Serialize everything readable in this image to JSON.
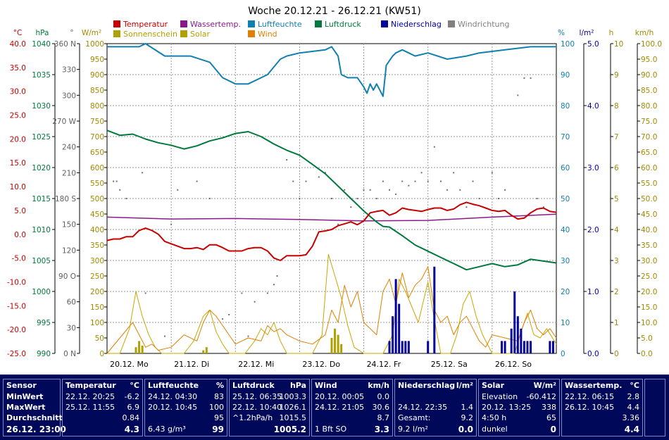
{
  "chart_data": {
    "type": "line",
    "title": "Woche 20.12.21 - 26.12.21 (KW51)",
    "x_range": [
      "20.12.21 00:00",
      "27.12.21 00:00"
    ],
    "x_ticks": [
      "20.12. Mo",
      "21.12. Di",
      "22.12. Mi",
      "23.12. Do",
      "24.12. Fr",
      "25.12. Sa",
      "26.12. So"
    ],
    "axes": {
      "temp": {
        "unit": "°C",
        "range": [
          -25,
          40
        ],
        "ticks": [
          "40.0",
          "35.0",
          "30.0",
          "25.0",
          "20.0",
          "15.0",
          "10.0",
          "5.0",
          "0.0",
          "-5.0",
          "-10.0",
          "-15.0",
          "-20.0",
          "-25.0"
        ],
        "color": "#c80000"
      },
      "pressure": {
        "unit": "hPa",
        "range": [
          990,
          1040
        ],
        "ticks": [
          "1040",
          "1035",
          "1030",
          "1025",
          "1020",
          "1015",
          "1010",
          "1005",
          "1000",
          "995",
          "990"
        ],
        "color": "#007a3c"
      },
      "wind_dir": {
        "unit": "°",
        "range": [
          0,
          360
        ],
        "ticks": [
          "360 N",
          "330",
          "300",
          "270 W",
          "240",
          "210",
          "180 S",
          "150",
          "120",
          "90 O",
          "60",
          "30",
          "0 N"
        ],
        "color": "#606060"
      },
      "solar": {
        "unit": "W/m²",
        "range": [
          0,
          1000
        ],
        "ticks": [
          "1000",
          "950",
          "900",
          "850",
          "800",
          "750",
          "700",
          "650",
          "600",
          "550",
          "500",
          "450",
          "400",
          "350",
          "300",
          "250",
          "200",
          "150",
          "100",
          "50",
          "0"
        ],
        "color": "#a08a00"
      },
      "humidity": {
        "unit": "%",
        "range": [
          0,
          100
        ],
        "ticks": [
          "100",
          "90",
          "80",
          "70",
          "60",
          "50",
          "40",
          "30",
          "20",
          "10",
          "0"
        ],
        "color": "#1080b0"
      },
      "precip": {
        "unit": "l/m²",
        "range": [
          0,
          5
        ],
        "ticks": [
          "5.0",
          "4.0",
          "3.0",
          "2.0",
          "1.0",
          "0.0"
        ],
        "color": "#0000a0"
      },
      "sunshine": {
        "unit": "h",
        "range": [
          0,
          10
        ],
        "ticks": [
          "10",
          "9",
          "8",
          "7",
          "6",
          "5",
          "4",
          "3",
          "2",
          "1",
          "0"
        ],
        "color": "#a08a00"
      },
      "wind": {
        "unit": "km/h",
        "range": [
          0,
          100
        ],
        "ticks": [
          "100.0",
          "95.0",
          "90.0",
          "85.0",
          "80.0",
          "75.0",
          "70.0",
          "65.0",
          "60.0",
          "55.0",
          "50.0",
          "45.0",
          "40.0",
          "35.0",
          "30.0",
          "25.0",
          "20.0",
          "15.0",
          "10.0",
          "5.0",
          "0.0"
        ],
        "color": "#a08a00"
      }
    },
    "legend": [
      {
        "name": "Temperatur",
        "color": "#c80000"
      },
      {
        "name": "Wassertemp.",
        "color": "#8a1a8a"
      },
      {
        "name": "Luftfeuchte",
        "color": "#1080b0"
      },
      {
        "name": "Luftdruck",
        "color": "#007a3c"
      },
      {
        "name": "Niederschlag",
        "color": "#0000a0"
      },
      {
        "name": "Windrichtung",
        "color": "#808080"
      },
      {
        "name": "Sonnenschein",
        "color": "#b0a000"
      },
      {
        "name": "Solar",
        "color": "#b0a000"
      },
      {
        "name": "Wind",
        "color": "#e08000"
      }
    ],
    "series": {
      "temperature": {
        "axis": "temp",
        "x": [
          0,
          0.1,
          0.2,
          0.3,
          0.4,
          0.5,
          0.6,
          0.7,
          0.8,
          0.9,
          1.0,
          1.1,
          1.2,
          1.3,
          1.4,
          1.5,
          1.6,
          1.7,
          1.8,
          1.9,
          2.0,
          2.1,
          2.2,
          2.3,
          2.4,
          2.5,
          2.6,
          2.7,
          2.8,
          2.9,
          3.0,
          3.1,
          3.2,
          3.3,
          3.4,
          3.5,
          3.6,
          3.7,
          3.8,
          3.9,
          4.0,
          4.1,
          4.2,
          4.3,
          4.4,
          4.5,
          4.6,
          4.7,
          4.8,
          4.9,
          5.0,
          5.1,
          5.2,
          5.3,
          5.4,
          5.5,
          5.6,
          5.7,
          5.8,
          5.9,
          6.0,
          6.1,
          6.2,
          6.3,
          6.4,
          6.5,
          6.6,
          6.7,
          6.8,
          6.9,
          7.0
        ],
        "y": [
          -1.3,
          -1.0,
          -1.0,
          -0.5,
          -0.5,
          0.8,
          1.3,
          0.8,
          0.0,
          -1.5,
          -2.0,
          -2.5,
          -3.0,
          -3.0,
          -2.8,
          -3.2,
          -2.2,
          -2.2,
          -2.8,
          -3.5,
          -3.5,
          -3.5,
          -3.0,
          -2.8,
          -2.8,
          -3.5,
          -5.0,
          -5.5,
          -4.5,
          -4.5,
          -4.5,
          -4.3,
          -2.5,
          0.5,
          0.7,
          1.0,
          1.8,
          2.2,
          2.6,
          2.0,
          2.8,
          4.5,
          4.8,
          5.0,
          4.0,
          4.5,
          5.5,
          5.2,
          5.0,
          4.8,
          5.2,
          5.5,
          5.5,
          5.0,
          5.3,
          6.2,
          6.7,
          6.3,
          6.0,
          5.5,
          5.0,
          4.8,
          5.0,
          4.0,
          3.2,
          3.4,
          4.5,
          5.3,
          5.5,
          4.8,
          4.6
        ]
      },
      "water_temperature": {
        "axis": "temp",
        "x": [
          0,
          1,
          2,
          3,
          4,
          5,
          6,
          7
        ],
        "y": [
          3.6,
          3.2,
          3.3,
          3.1,
          2.8,
          2.9,
          3.6,
          4.2
        ]
      },
      "humidity": {
        "axis": "humidity",
        "x": [
          0,
          0.3,
          0.5,
          0.6,
          0.9,
          1.3,
          1.6,
          1.8,
          2.0,
          2.2,
          2.5,
          2.7,
          2.8,
          3.0,
          3.4,
          3.5,
          3.6,
          3.65,
          3.75,
          3.9,
          4.0,
          4.05,
          4.1,
          4.15,
          4.2,
          4.3,
          4.35,
          4.45,
          4.5,
          4.6,
          4.7,
          4.8,
          5.0,
          5.3,
          5.6,
          5.8,
          6.2,
          6.6,
          6.8,
          7.0
        ],
        "y": [
          99,
          99,
          99,
          100,
          96,
          96,
          94,
          89,
          87,
          87,
          90,
          95,
          96,
          97,
          98,
          99,
          96,
          90,
          89,
          89,
          86,
          84,
          87,
          85,
          87,
          83,
          93,
          96,
          97,
          98,
          97,
          96,
          97,
          95,
          96,
          97,
          98,
          99,
          99,
          99
        ]
      },
      "pressure": {
        "axis": "pressure",
        "x": [
          0,
          0.2,
          0.4,
          0.6,
          0.8,
          1.0,
          1.2,
          1.4,
          1.6,
          1.8,
          2.0,
          2.2,
          2.4,
          2.6,
          2.8,
          3.0,
          3.2,
          3.4,
          3.6,
          3.8,
          4.0,
          4.2,
          4.3,
          4.4,
          4.6,
          4.8,
          5.0,
          5.2,
          5.4,
          5.6,
          5.8,
          6.0,
          6.2,
          6.4,
          6.6,
          6.8,
          7.0
        ],
        "y": [
          1026.0,
          1025.2,
          1025.4,
          1024.6,
          1024.0,
          1023.6,
          1023.0,
          1023.5,
          1024.3,
          1024.8,
          1025.5,
          1025.8,
          1025.0,
          1023.8,
          1022.8,
          1022.0,
          1020.5,
          1019.0,
          1017.0,
          1015.0,
          1013.0,
          1011.2,
          1010.5,
          1010.4,
          1009.0,
          1007.5,
          1006.5,
          1005.5,
          1004.5,
          1003.5,
          1004.0,
          1004.5,
          1004.0,
          1004.3,
          1005.2,
          1004.9,
          1004.6
        ]
      },
      "solar": {
        "axis": "solar",
        "x": [
          0,
          0.2,
          0.35,
          0.45,
          0.55,
          0.65,
          0.75,
          0.85,
          1.0,
          1.2,
          1.35,
          1.5,
          1.6,
          1.7,
          1.8,
          1.9,
          2.0,
          2.15,
          2.3,
          2.4,
          2.5,
          2.6,
          2.7,
          2.8,
          2.9,
          3.0,
          3.2,
          3.35,
          3.45,
          3.55,
          3.65,
          3.75,
          3.85,
          4.0,
          4.1,
          4.3,
          4.45,
          4.55,
          4.65,
          4.75,
          4.85,
          5.0,
          5.1,
          5.2,
          5.35,
          5.45,
          5.55,
          5.65,
          5.75,
          5.85,
          6.0,
          6.2,
          6.35,
          6.45,
          6.55,
          6.65,
          6.75,
          6.85,
          7.0
        ],
        "y": [
          0,
          0,
          80,
          200,
          120,
          60,
          20,
          0,
          0,
          0,
          40,
          120,
          140,
          70,
          30,
          0,
          0,
          0,
          40,
          80,
          60,
          100,
          40,
          0,
          0,
          0,
          0,
          60,
          320,
          250,
          180,
          90,
          20,
          0,
          0,
          0,
          60,
          240,
          200,
          150,
          100,
          230,
          110,
          0,
          0,
          60,
          160,
          200,
          120,
          60,
          0,
          0,
          0,
          70,
          130,
          60,
          50,
          80,
          30
        ]
      },
      "wind": {
        "axis": "wind",
        "x": [
          0,
          0.2,
          0.4,
          0.5,
          0.6,
          0.7,
          0.8,
          1.0,
          1.2,
          1.4,
          1.5,
          1.6,
          1.7,
          1.8,
          1.9,
          2.0,
          2.2,
          2.4,
          2.5,
          2.6,
          2.7,
          2.8,
          3.0,
          3.2,
          3.4,
          3.5,
          3.6,
          3.7,
          3.8,
          3.9,
          4.0,
          4.2,
          4.3,
          4.4,
          4.5,
          4.6,
          4.7,
          4.8,
          4.9,
          5.0,
          5.1,
          5.2,
          5.3,
          5.4,
          5.5,
          5.6,
          5.7,
          5.8,
          5.9,
          6.0,
          6.2,
          6.4,
          6.5,
          6.6,
          6.7,
          6.8,
          6.9,
          7.0
        ],
        "y": [
          0,
          5,
          10,
          6,
          2,
          3,
          1,
          2,
          6,
          4,
          10,
          14,
          12,
          9,
          6,
          3,
          5,
          4,
          9,
          7,
          8,
          6,
          4,
          3,
          6,
          14,
          10,
          22,
          15,
          20,
          10,
          6,
          20,
          24,
          16,
          26,
          18,
          22,
          24,
          28,
          14,
          10,
          12,
          6,
          10,
          12,
          8,
          4,
          2,
          6,
          5,
          4,
          10,
          14,
          8,
          6,
          8,
          5
        ]
      },
      "wind_direction": {
        "axis": "wind_dir",
        "x": [
          0.1,
          0.15,
          0.2,
          0.3,
          0.55,
          0.6,
          0.9,
          1.0,
          1.1,
          1.4,
          1.6,
          1.8,
          1.9,
          2.1,
          2.2,
          2.3,
          2.5,
          2.6,
          2.65,
          2.8,
          2.9,
          3.0,
          3.1,
          3.3,
          3.4,
          3.5,
          3.6,
          3.7,
          3.8,
          3.9,
          4.0,
          4.1,
          4.2,
          4.3,
          4.4,
          4.5,
          4.6,
          4.7,
          4.8,
          4.9,
          5.0,
          5.1,
          5.2,
          5.3,
          5.4,
          5.5,
          5.6,
          5.7,
          5.8,
          6.0,
          6.1,
          6.2,
          6.4,
          6.5,
          6.6,
          6.7,
          6.8
        ],
        "y": [
          200,
          200,
          190,
          180,
          210,
          70,
          20,
          150,
          190,
          200,
          180,
          40,
          45,
          70,
          20,
          60,
          70,
          80,
          90,
          225,
          200,
          180,
          200,
          205,
          210,
          180,
          150,
          190,
          170,
          180,
          190,
          190,
          180,
          200,
          190,
          185,
          200,
          195,
          200,
          210,
          200,
          240,
          200,
          190,
          210,
          190,
          170,
          200,
          180,
          210,
          180,
          190,
          300,
          320,
          320,
          180,
          170
        ]
      },
      "sunshine_bars": {
        "axis": "sunshine",
        "x": [
          0.45,
          0.5,
          0.55,
          1.5,
          1.55,
          3.5,
          3.55,
          3.6,
          3.65
        ],
        "y": [
          0.2,
          0.4,
          0.25,
          0.1,
          0.2,
          0.5,
          0.8,
          0.6,
          0.3
        ]
      },
      "precipitation": {
        "axis": "precip",
        "x": [
          4.4,
          4.45,
          4.5,
          4.55,
          4.6,
          4.65,
          4.7,
          5.0,
          5.1,
          6.15,
          6.2,
          6.3,
          6.35,
          6.4,
          6.45,
          6.5,
          6.55,
          6.6,
          6.9,
          6.95
        ],
        "y": [
          0.2,
          0.6,
          1.2,
          0.8,
          0.2,
          0.2,
          0.2,
          0.2,
          1.4,
          0.2,
          0.2,
          0.4,
          1.0,
          0.6,
          0.4,
          0.2,
          0.2,
          0.2,
          0.2,
          0.2
        ]
      }
    }
  },
  "table": {
    "sensor": {
      "label": "Sensor",
      "min": "MinWert",
      "max": "MaxWert",
      "avg": "Durchschnitt",
      "time": "26.12. 23:00"
    },
    "temperatur": {
      "title": "Temperatur",
      "unit": "°C",
      "min_time": "22.12. 20:25",
      "min": "-6.2",
      "max_time": "25.12. 11:55",
      "max": "6.9",
      "avg": "0.84",
      "current": "4.3"
    },
    "luftfeuchte": {
      "title": "Luftfeuchte",
      "unit": "%",
      "min_time": "24.12. 04:30",
      "min": "83",
      "max_time": "20.12. 10:45",
      "max": "100",
      "avg": "95",
      "abs": "6.43 g/m³",
      "current": "99"
    },
    "luftdruck": {
      "title": "Luftdruck",
      "unit": "hPa",
      "min_time": "25.12. 06:35",
      "min": "1003.3",
      "max_time": "22.12. 10:40",
      "max": "1026.1",
      "trend": "^1.2hPa/h",
      "avg": "1015.5",
      "current": "1005.2"
    },
    "wind": {
      "title": "Wind",
      "unit": "km/h",
      "min_time": "20.12. 00:05",
      "min": "0.0",
      "max_time": "24.12. 21:05",
      "max": "30.6",
      "avg": "8.7",
      "beaufort": "1 Bft SO",
      "current": "3.3"
    },
    "niederschlag": {
      "title": "Niederschlag",
      "unit": "l/m²",
      "max_time": "24.12. 22:35",
      "max": "1.4",
      "total_label": "Gesamt:",
      "total": "9.2",
      "sum": "9.2 l/m²",
      "current": "0.0"
    },
    "solar": {
      "title": "Solar",
      "unit": "W/m²",
      "elev_label": "Elevation",
      "elev": "-60.412",
      "max_time": "20.12. 13:25",
      "max": "338",
      "sun_hours": "4:50 h",
      "avg": "65",
      "state": "dunkel",
      "current": "0"
    },
    "wassertemp": {
      "title": "Wassertemp.",
      "unit": "°C",
      "min_time": "22.12. 06:15",
      "min": "2.8",
      "max_time": "26.12. 10:45",
      "max": "4.4",
      "avg": "3.36",
      "current": "4.4"
    }
  }
}
